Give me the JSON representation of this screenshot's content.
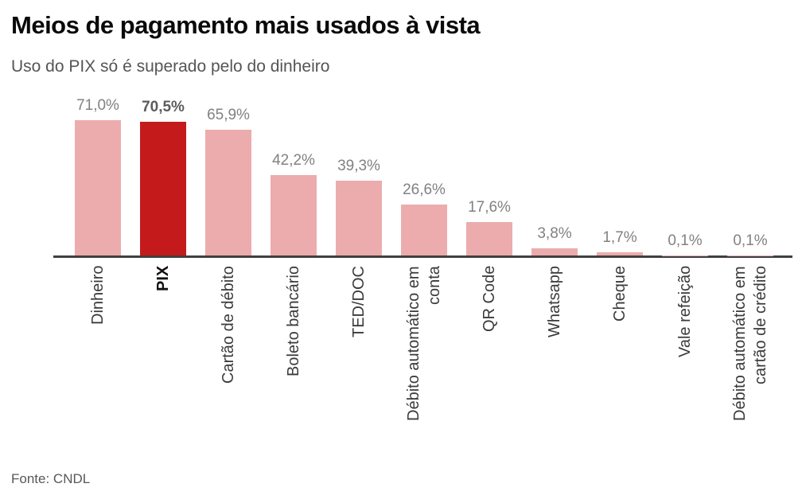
{
  "header": {
    "title": "Meios de pagamento mais usados à vista",
    "subtitle": "Uso do PIX só é superado pelo do dinheiro"
  },
  "chart_data": {
    "type": "bar",
    "title": "Meios de pagamento mais usados à vista",
    "subtitle": "Uso do PIX só é superado pelo do dinheiro",
    "orientation": "vertical",
    "unit": "%",
    "categories": [
      "Dinheiro",
      "PIX",
      "Cartão de débito",
      "Boleto bancário",
      "TED/DOC",
      "Débito automático em\nconta",
      "QR Code",
      "Whatsapp",
      "Cheque",
      "Vale refeição",
      "Débito automático em\ncartão de crédito"
    ],
    "values": [
      71.0,
      70.5,
      65.9,
      42.2,
      39.3,
      26.6,
      17.6,
      3.8,
      1.7,
      0.1,
      0.1
    ],
    "value_labels": [
      "71,0%",
      "70,5%",
      "65,9%",
      "42,2%",
      "39,3%",
      "26,6%",
      "17,6%",
      "3,8%",
      "1,7%",
      "0,1%",
      "0,1%"
    ],
    "highlight_index": 1,
    "highlight_category": "PIX",
    "ylim": [
      0,
      75
    ],
    "grid": false,
    "legend": false,
    "colors": {
      "bar": "#ECACAD",
      "highlight_bar": "#C51A1B",
      "axis": "#404040",
      "value_label": "#818182",
      "highlight_value_label": "#5C5C5E",
      "category_label": "#3A3A3C",
      "highlight_category_label": "#111111"
    }
  },
  "footer": {
    "source": "Fonte: CNDL"
  }
}
